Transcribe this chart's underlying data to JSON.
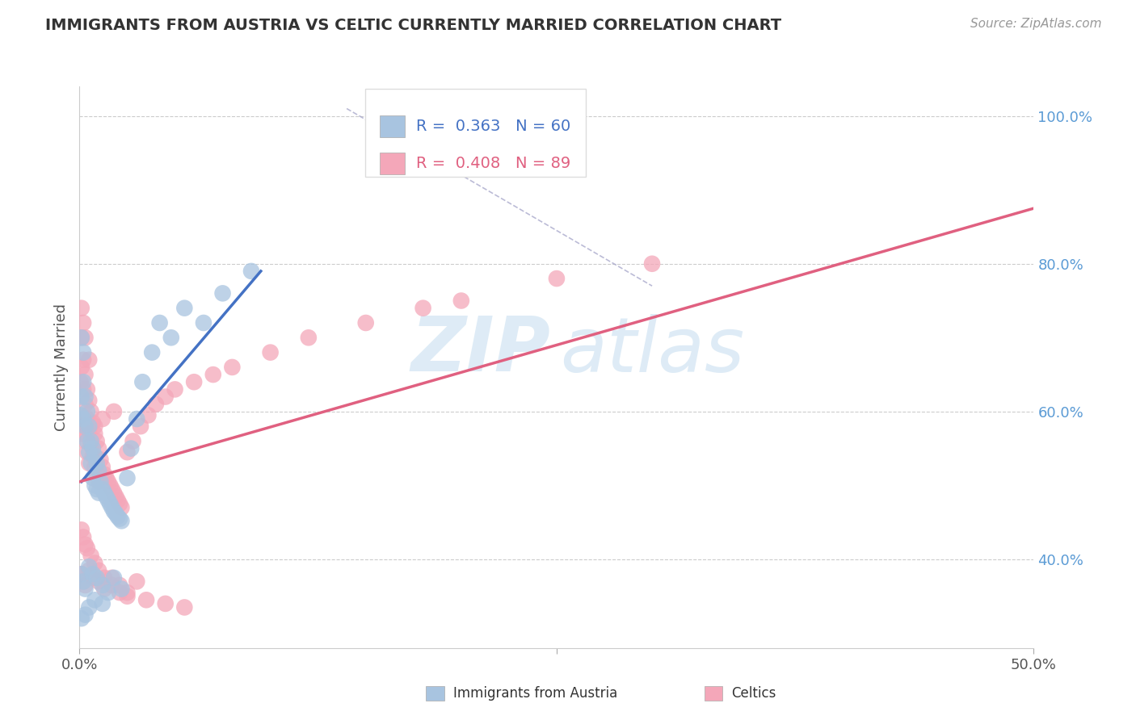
{
  "title": "IMMIGRANTS FROM AUSTRIA VS CELTIC CURRENTLY MARRIED CORRELATION CHART",
  "source": "Source: ZipAtlas.com",
  "ylabel": "Currently Married",
  "austria_color": "#A8C4E0",
  "celtic_color": "#F4A7B9",
  "austria_line_color": "#4472C4",
  "celtic_line_color": "#E06080",
  "xmin": 0.0,
  "xmax": 0.5,
  "ymin": 0.28,
  "ymax": 1.04,
  "yticks": [
    0.4,
    0.6,
    0.8,
    1.0
  ],
  "austria_line_x": [
    0.001,
    0.095
  ],
  "austria_line_y": [
    0.505,
    0.79
  ],
  "celtic_line_x": [
    0.0,
    0.5
  ],
  "celtic_line_y": [
    0.505,
    0.875
  ],
  "dash_line_x": [
    0.14,
    0.3
  ],
  "dash_line_y": [
    1.01,
    0.77
  ],
  "austria_scatter_x": [
    0.0005,
    0.001,
    0.001,
    0.002,
    0.002,
    0.002,
    0.003,
    0.003,
    0.004,
    0.004,
    0.005,
    0.005,
    0.006,
    0.006,
    0.007,
    0.007,
    0.008,
    0.008,
    0.009,
    0.009,
    0.01,
    0.01,
    0.011,
    0.012,
    0.013,
    0.014,
    0.015,
    0.016,
    0.017,
    0.018,
    0.019,
    0.02,
    0.021,
    0.022,
    0.025,
    0.027,
    0.03,
    0.033,
    0.038,
    0.042,
    0.048,
    0.055,
    0.065,
    0.075,
    0.09,
    0.001,
    0.002,
    0.003,
    0.005,
    0.007,
    0.009,
    0.012,
    0.015,
    0.018,
    0.022,
    0.001,
    0.003,
    0.005,
    0.008,
    0.012
  ],
  "austria_scatter_y": [
    0.595,
    0.7,
    0.62,
    0.68,
    0.64,
    0.59,
    0.62,
    0.58,
    0.6,
    0.56,
    0.58,
    0.545,
    0.56,
    0.53,
    0.55,
    0.51,
    0.54,
    0.5,
    0.53,
    0.495,
    0.52,
    0.49,
    0.505,
    0.495,
    0.49,
    0.485,
    0.48,
    0.475,
    0.47,
    0.465,
    0.462,
    0.458,
    0.455,
    0.452,
    0.51,
    0.55,
    0.59,
    0.64,
    0.68,
    0.72,
    0.7,
    0.74,
    0.72,
    0.76,
    0.79,
    0.38,
    0.37,
    0.36,
    0.39,
    0.38,
    0.375,
    0.365,
    0.355,
    0.375,
    0.36,
    0.32,
    0.325,
    0.335,
    0.345,
    0.34
  ],
  "celtic_scatter_x": [
    0.0003,
    0.0005,
    0.001,
    0.001,
    0.001,
    0.002,
    0.002,
    0.002,
    0.003,
    0.003,
    0.003,
    0.004,
    0.004,
    0.004,
    0.005,
    0.005,
    0.005,
    0.006,
    0.006,
    0.007,
    0.007,
    0.008,
    0.008,
    0.009,
    0.009,
    0.01,
    0.01,
    0.011,
    0.012,
    0.013,
    0.014,
    0.015,
    0.016,
    0.017,
    0.018,
    0.019,
    0.02,
    0.021,
    0.022,
    0.025,
    0.028,
    0.032,
    0.036,
    0.04,
    0.045,
    0.05,
    0.06,
    0.07,
    0.08,
    0.1,
    0.12,
    0.15,
    0.18,
    0.2,
    0.25,
    0.3,
    0.001,
    0.002,
    0.003,
    0.005,
    0.007,
    0.01,
    0.013,
    0.017,
    0.021,
    0.025,
    0.03,
    0.001,
    0.002,
    0.003,
    0.004,
    0.006,
    0.008,
    0.01,
    0.013,
    0.017,
    0.021,
    0.025,
    0.035,
    0.045,
    0.055,
    0.001,
    0.002,
    0.003,
    0.005,
    0.008,
    0.012,
    0.018
  ],
  "celtic_scatter_y": [
    0.58,
    0.64,
    0.7,
    0.66,
    0.59,
    0.67,
    0.63,
    0.57,
    0.65,
    0.61,
    0.56,
    0.63,
    0.59,
    0.545,
    0.615,
    0.575,
    0.53,
    0.6,
    0.555,
    0.585,
    0.54,
    0.57,
    0.525,
    0.56,
    0.515,
    0.55,
    0.505,
    0.535,
    0.525,
    0.515,
    0.51,
    0.505,
    0.5,
    0.495,
    0.49,
    0.485,
    0.48,
    0.475,
    0.47,
    0.545,
    0.56,
    0.58,
    0.595,
    0.61,
    0.62,
    0.63,
    0.64,
    0.65,
    0.66,
    0.68,
    0.7,
    0.72,
    0.74,
    0.75,
    0.78,
    0.8,
    0.38,
    0.37,
    0.365,
    0.385,
    0.375,
    0.37,
    0.36,
    0.375,
    0.365,
    0.355,
    0.37,
    0.44,
    0.43,
    0.42,
    0.415,
    0.405,
    0.395,
    0.385,
    0.375,
    0.365,
    0.355,
    0.35,
    0.345,
    0.34,
    0.335,
    0.74,
    0.72,
    0.7,
    0.67,
    0.58,
    0.59,
    0.6
  ]
}
